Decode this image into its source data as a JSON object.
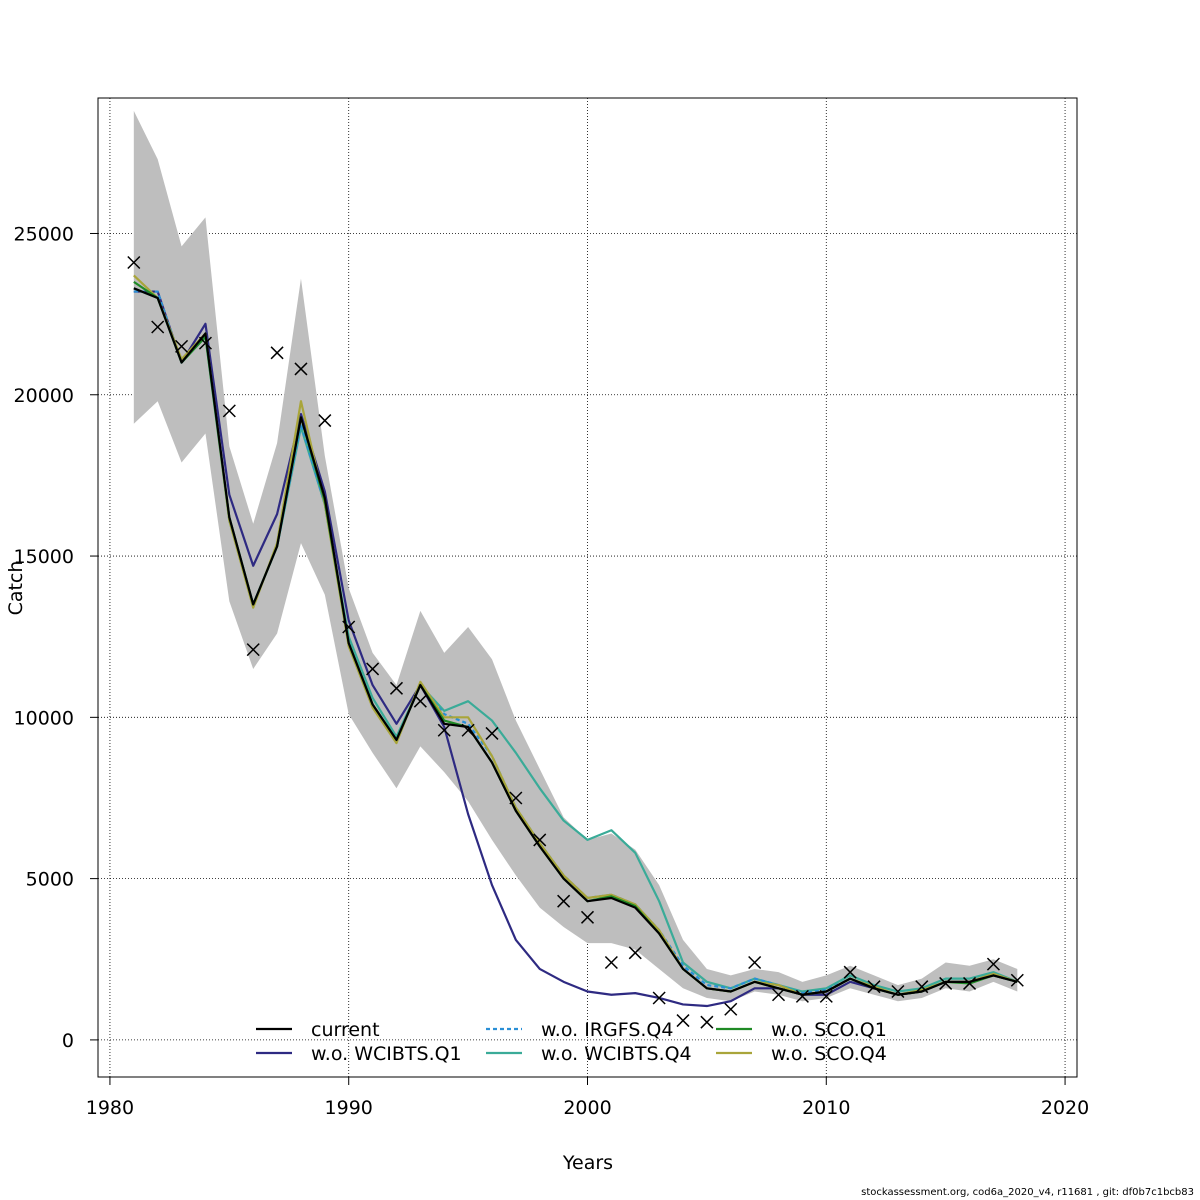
{
  "footer": "stockassessment.org, cod6a_2020_v4, r11681 , git: df0b7c1bcb83",
  "chart_data": {
    "type": "line",
    "xlabel": "Years",
    "ylabel": "Catch",
    "xlim": [
      1979.5,
      2020.5
    ],
    "ylim": [
      -1150,
      29200
    ],
    "grid": true,
    "x_ticks": [
      {
        "value": 1980,
        "label": "1980"
      },
      {
        "value": 1990,
        "label": "1990"
      },
      {
        "value": 2000,
        "label": "2000"
      },
      {
        "value": 2010,
        "label": "2010"
      },
      {
        "value": 2020,
        "label": "2020"
      }
    ],
    "y_ticks": [
      {
        "value": 0,
        "label": "0"
      },
      {
        "value": 5000,
        "label": "5000"
      },
      {
        "value": 10000,
        "label": "10000"
      },
      {
        "value": 15000,
        "label": "15000"
      },
      {
        "value": 20000,
        "label": "20000"
      },
      {
        "value": 25000,
        "label": "25000"
      }
    ],
    "years": [
      1981,
      1982,
      1983,
      1984,
      1985,
      1986,
      1987,
      1988,
      1989,
      1990,
      1991,
      1992,
      1993,
      1994,
      1995,
      1996,
      1997,
      1998,
      1999,
      2000,
      2001,
      2002,
      2003,
      2004,
      2005,
      2006,
      2007,
      2008,
      2009,
      2010,
      2011,
      2012,
      2013,
      2014,
      2015,
      2016,
      2017,
      2018
    ],
    "confidence_band": {
      "color": "#bebebe",
      "upper": [
        28800,
        27300,
        24600,
        25500,
        18400,
        16000,
        18500,
        23600,
        18100,
        14000,
        12000,
        11000,
        13300,
        12000,
        12800,
        11800,
        9900,
        8400,
        6900,
        6200,
        6400,
        5900,
        4800,
        3100,
        2200,
        2000,
        2200,
        2100,
        1800,
        2000,
        2300,
        2000,
        1700,
        1900,
        2400,
        2300,
        2500,
        2200
      ],
      "lower": [
        19100,
        19800,
        17900,
        18800,
        13600,
        11500,
        12600,
        15400,
        13800,
        10100,
        8900,
        7800,
        9100,
        8300,
        7400,
        6200,
        5100,
        4100,
        3500,
        3000,
        3000,
        2800,
        2200,
        1600,
        1300,
        1200,
        1500,
        1400,
        1200,
        1300,
        1600,
        1400,
        1200,
        1300,
        1600,
        1500,
        1800,
        1500
      ]
    },
    "series": [
      {
        "name": "current",
        "color": "#000000",
        "dash": "",
        "values": [
          23300,
          23000,
          21000,
          21900,
          16200,
          13500,
          15300,
          19300,
          16800,
          12300,
          10400,
          9300,
          11000,
          9800,
          9700,
          8600,
          7100,
          6000,
          5000,
          4300,
          4400,
          4100,
          3300,
          2200,
          1600,
          1500,
          1800,
          1600,
          1400,
          1500,
          1900,
          1600,
          1400,
          1500,
          1800,
          1800,
          2000,
          1800
        ]
      },
      {
        "name": "w.o. WCIBTS.Q1",
        "color": "#2e2a82",
        "dash": "",
        "values": [
          23200,
          23200,
          21000,
          22200,
          16900,
          14700,
          16300,
          19400,
          17000,
          13000,
          11000,
          9800,
          11000,
          9700,
          7000,
          4800,
          3100,
          2200,
          1800,
          1500,
          1400,
          1450,
          1300,
          1100,
          1050,
          1200,
          1600,
          1600,
          1400,
          1400,
          1800,
          1600,
          1400,
          1500,
          1800,
          1800,
          2000,
          1800
        ]
      },
      {
        "name": "w.o. IRGFS.Q4",
        "color": "#2a8fd6",
        "dash": "4 3",
        "values": [
          23200,
          23200,
          21000,
          21900,
          16200,
          13500,
          15300,
          19100,
          16600,
          12300,
          10400,
          9300,
          11000,
          10100,
          9800,
          8800,
          7200,
          6100,
          5100,
          4400,
          4500,
          4200,
          3400,
          2300,
          1700,
          1600,
          1900,
          1700,
          1450,
          1550,
          1900,
          1650,
          1400,
          1550,
          1800,
          1800,
          2050,
          1800
        ]
      },
      {
        "name": "w.o. WCIBTS.Q4",
        "color": "#3aab98",
        "dash": "",
        "values": [
          23300,
          23000,
          21000,
          21800,
          16100,
          13500,
          15300,
          19000,
          16600,
          12500,
          10600,
          9400,
          11000,
          10200,
          10500,
          9900,
          8900,
          7800,
          6800,
          6200,
          6500,
          5800,
          4300,
          2400,
          1800,
          1600,
          1900,
          1700,
          1500,
          1600,
          2000,
          1700,
          1500,
          1600,
          1900,
          1900,
          2100,
          1800
        ]
      },
      {
        "name": "w.o. SCO.Q1",
        "color": "#1f8a25",
        "dash": "",
        "values": [
          23500,
          23000,
          21000,
          21800,
          16200,
          13500,
          15300,
          19300,
          16700,
          12300,
          10400,
          9300,
          11000,
          9900,
          9700,
          8600,
          7100,
          6000,
          5000,
          4300,
          4450,
          4150,
          3300,
          2200,
          1600,
          1500,
          1800,
          1600,
          1400,
          1500,
          1900,
          1600,
          1400,
          1500,
          1800,
          1750,
          2000,
          1800
        ]
      },
      {
        "name": "w.o. SCO.Q4",
        "color": "#a9a53a",
        "dash": "",
        "values": [
          23700,
          23000,
          21100,
          21900,
          16100,
          13400,
          15400,
          19800,
          16600,
          12200,
          10300,
          9200,
          11100,
          10000,
          10000,
          8800,
          7200,
          6100,
          5100,
          4400,
          4500,
          4200,
          3400,
          2200,
          1600,
          1500,
          1800,
          1700,
          1400,
          1500,
          1900,
          1650,
          1400,
          1550,
          1800,
          1800,
          2050,
          1800
        ]
      }
    ],
    "observed": {
      "marker": "x",
      "values": [
        24100,
        22100,
        21500,
        21600,
        19500,
        12100,
        21300,
        20800,
        19200,
        12800,
        11500,
        10900,
        10500,
        9600,
        9600,
        9500,
        7500,
        6200,
        4300,
        3800,
        2400,
        2700,
        1300,
        600,
        550,
        950,
        2400,
        1400,
        1350,
        1350,
        2100,
        1650,
        1500,
        1650,
        1750,
        1750,
        2350,
        1850
      ]
    },
    "legend": {
      "placement": "bottom-center",
      "columns": [
        [
          "current",
          "w.o. WCIBTS.Q1"
        ],
        [
          "w.o. IRGFS.Q4",
          "w.o. WCIBTS.Q4"
        ],
        [
          "w.o. SCO.Q1",
          "w.o. SCO.Q4"
        ]
      ]
    }
  }
}
